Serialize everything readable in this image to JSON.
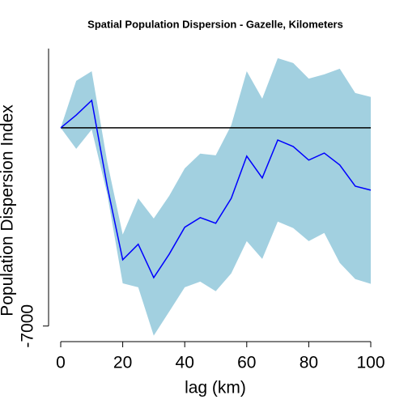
{
  "chart_data": {
    "type": "line",
    "title": "Spatial Population Dispersion - Gazelle, Kilometers",
    "x_label": "lag (km)",
    "y_label": "Population Dispersion Index",
    "x": [
      0,
      5,
      10,
      15,
      20,
      25,
      30,
      35,
      40,
      45,
      50,
      55,
      60,
      65,
      70,
      75,
      80,
      85,
      90,
      95,
      100
    ],
    "values": [
      0,
      450,
      970,
      -2060,
      -4660,
      -4110,
      -5290,
      -4460,
      -3510,
      -3170,
      -3370,
      -2490,
      -1000,
      -1770,
      -430,
      -660,
      -1140,
      -890,
      -1310,
      -2060,
      -2200
    ],
    "lower": [
      0,
      -740,
      -60,
      -2340,
      -5490,
      -5630,
      -7340,
      -6490,
      -5630,
      -5430,
      -5770,
      -5140,
      -4000,
      -4630,
      -3310,
      -3540,
      -4000,
      -3710,
      -4770,
      -5340,
      -5510
    ],
    "upper": [
      0,
      1660,
      2000,
      -1200,
      -3770,
      -2490,
      -3200,
      -2400,
      -1430,
      -910,
      -970,
      90,
      2000,
      1030,
      2460,
      2290,
      1740,
      1890,
      2090,
      1230,
      1090
    ],
    "color": "#0000ff",
    "band_color": "#a2d0e0",
    "hline": 0,
    "hline_color": "#000000",
    "xlim": [
      0,
      100
    ],
    "xticks": [
      0,
      20,
      40,
      60,
      80,
      100
    ],
    "ylim": [
      -7350,
      2800
    ],
    "yticks": [
      -7000
    ]
  }
}
